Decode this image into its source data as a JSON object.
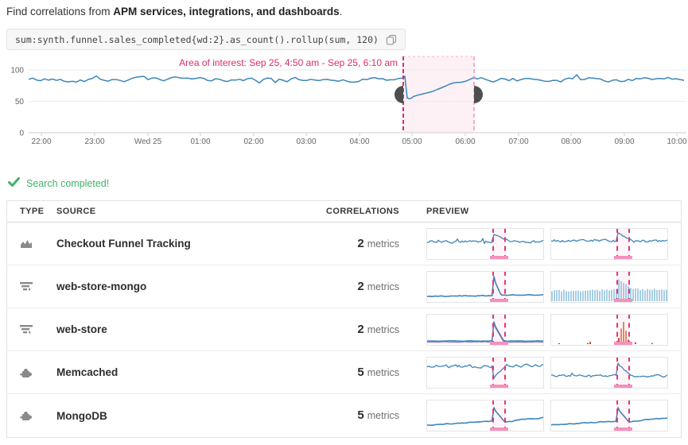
{
  "page": {
    "intro": {
      "prefix": "Find correlations from ",
      "emphasis": "APM services, integrations, and dashboards",
      "suffix": "."
    },
    "query": {
      "text": "sum:synth.funnel.sales_completed{wd:2}.as_count().rollup(sum, 120)"
    },
    "status": {
      "label": "Search completed!"
    }
  },
  "chart": {
    "area_of_interest_label": "Area of interest: Sep 25, 4:50 am - Sep 25, 6:10 am",
    "selection": {
      "start": "Sep 25, 4:50 am",
      "end": "Sep 25, 6:10 am"
    },
    "y_ticks": [
      "100",
      "50",
      "0"
    ],
    "x_ticks": [
      "22:00",
      "23:00",
      "Wed 25",
      "01:00",
      "02:00",
      "03:00",
      "04:00",
      "05:00",
      "06:00",
      "07:00",
      "08:00",
      "09:00",
      "10:00"
    ],
    "baseline_value": 85,
    "dip_value": 55
  },
  "table": {
    "headers": {
      "type": "TYPE",
      "source": "SOURCE",
      "correlations": "CORRELATIONS",
      "preview": "PREVIEW"
    },
    "rows": [
      {
        "type": "dashboard",
        "source": "Checkout Funnel Tracking",
        "count": "2",
        "unit": "metrics",
        "previews": [
          {
            "kind": "noisy-spike"
          },
          {
            "kind": "noisy-spike-tall"
          }
        ]
      },
      {
        "type": "apm-service",
        "source": "web-store-mongo",
        "count": "2",
        "unit": "metrics",
        "previews": [
          {
            "kind": "flat-spike"
          },
          {
            "kind": "bars-spike"
          }
        ]
      },
      {
        "type": "apm-service",
        "source": "web-store",
        "count": "2",
        "unit": "metrics",
        "previews": [
          {
            "kind": "dual-flat-spike"
          },
          {
            "kind": "sparse-red-bars"
          }
        ]
      },
      {
        "type": "integration",
        "source": "Memcached",
        "count": "5",
        "unit": "metrics",
        "previews": [
          {
            "kind": "noisy-dip"
          },
          {
            "kind": "noisy-spike-low"
          }
        ]
      },
      {
        "type": "integration",
        "source": "MongoDB",
        "count": "5",
        "unit": "metrics",
        "previews": [
          {
            "kind": "rising-spike"
          },
          {
            "kind": "rising-spike"
          }
        ]
      }
    ]
  },
  "colors": {
    "line_blue": "#3d85ba",
    "bars_blue": "#a9cfe5",
    "purple_line": "#8579be",
    "accent_pink": "#df2a6b",
    "pink_light": "#f291b8",
    "pink_top": "#f3b3cd",
    "selection_fill": "#fdf1f6",
    "green": "#3fb269",
    "red_bar": "#d0452c",
    "red_bar_light": "#e58a62",
    "handle_gray": "#4e4e4e",
    "icon_gray": "#8a8a8a",
    "grid": "#ececec",
    "axis": "#cfcfcf",
    "tick_text": "#666666"
  }
}
